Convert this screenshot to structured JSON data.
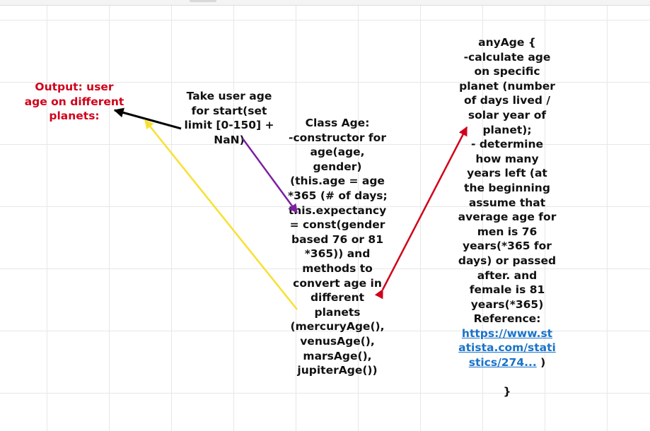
{
  "output_note": [
    "Output: user",
    "age on different",
    "planets:"
  ],
  "start_note": [
    "Take user age",
    "for start(set",
    "limit [0-150] +",
    "NaN)"
  ],
  "class_note": [
    "Class Age:",
    "-constructor for",
    "age(age,",
    "gender)",
    "(this.age = age",
    "*365 (# of days;",
    "this.expectancy",
    "= const(gender",
    "based 76 or 81",
    "*365)) and",
    "methods to",
    "convert age in",
    "different",
    "planets",
    "(mercuryAge(),",
    "venusAge(),",
    "marsAge(),",
    "jupiterAge())"
  ],
  "anyage_note": {
    "lines": [
      "anyAge {",
      "-calculate age",
      "on specific",
      "planet (number",
      "of days lived /",
      "solar year of",
      "planet);",
      "- determine",
      "how many",
      "years left (at",
      "the beginning",
      "assume that",
      "average age for",
      "men is 76",
      "years(*365 for",
      "days) or passed",
      "after. and",
      "female is 81",
      "years(*365)",
      "Reference:"
    ],
    "link_parts": [
      "https://www.st",
      "atista.com/stati",
      "stics/274..."
    ],
    "link_suffix": " )",
    "closing": "}"
  },
  "colors": {
    "output_text": "#d0021b",
    "arrow_black": "#000000",
    "arrow_purple": "#7b1fa2",
    "arrow_yellow": "#f8e030",
    "arrow_red": "#d0021b",
    "link": "#1a73c8"
  }
}
